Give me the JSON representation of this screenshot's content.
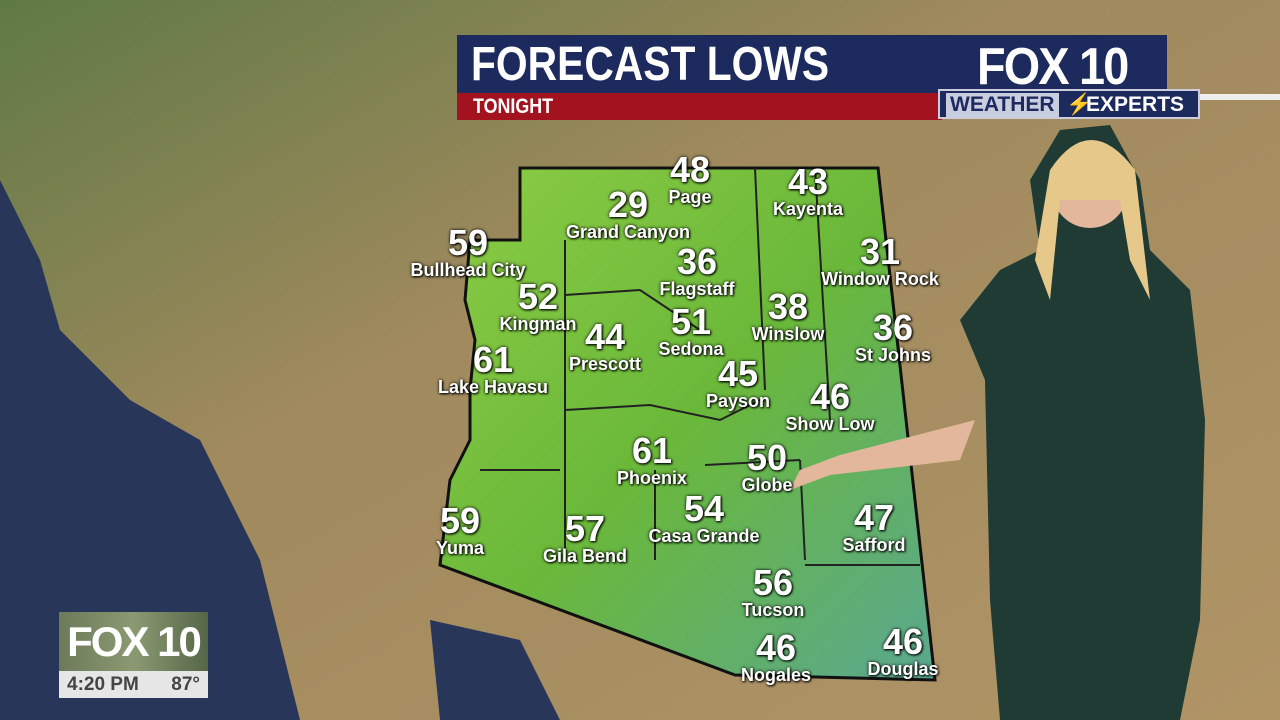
{
  "header": {
    "title": "FORECAST LOWS",
    "subtitle": "TONIGHT",
    "logo": "FOX 10",
    "tagline_left": "WEATHER",
    "tagline_right": "EXPERTS"
  },
  "colors": {
    "header_blue": "#1d2a5e",
    "header_red": "#a3121f",
    "state_fill": "#7cc63a"
  },
  "cities": [
    {
      "name": "Page",
      "temp": "48"
    },
    {
      "name": "Kayenta",
      "temp": "43"
    },
    {
      "name": "Grand Canyon",
      "temp": "29"
    },
    {
      "name": "Bullhead City",
      "temp": "59"
    },
    {
      "name": "Flagstaff",
      "temp": "36"
    },
    {
      "name": "Window Rock",
      "temp": "31"
    },
    {
      "name": "Kingman",
      "temp": "52"
    },
    {
      "name": "Winslow",
      "temp": "38"
    },
    {
      "name": "Prescott",
      "temp": "44"
    },
    {
      "name": "Sedona",
      "temp": "51"
    },
    {
      "name": "St Johns",
      "temp": "36"
    },
    {
      "name": "Lake Havasu",
      "temp": "61"
    },
    {
      "name": "Payson",
      "temp": "45"
    },
    {
      "name": "Show Low",
      "temp": "46"
    },
    {
      "name": "Phoenix",
      "temp": "61"
    },
    {
      "name": "Globe",
      "temp": "50"
    },
    {
      "name": "Casa Grande",
      "temp": "54"
    },
    {
      "name": "Safford",
      "temp": "47"
    },
    {
      "name": "Yuma",
      "temp": "59"
    },
    {
      "name": "Gila Bend",
      "temp": "57"
    },
    {
      "name": "Tucson",
      "temp": "56"
    },
    {
      "name": "Nogales",
      "temp": "46"
    },
    {
      "name": "Douglas",
      "temp": "46"
    }
  ],
  "bug": {
    "logo": "FOX 10",
    "time": "4:20 PM",
    "temperature": "87°"
  }
}
